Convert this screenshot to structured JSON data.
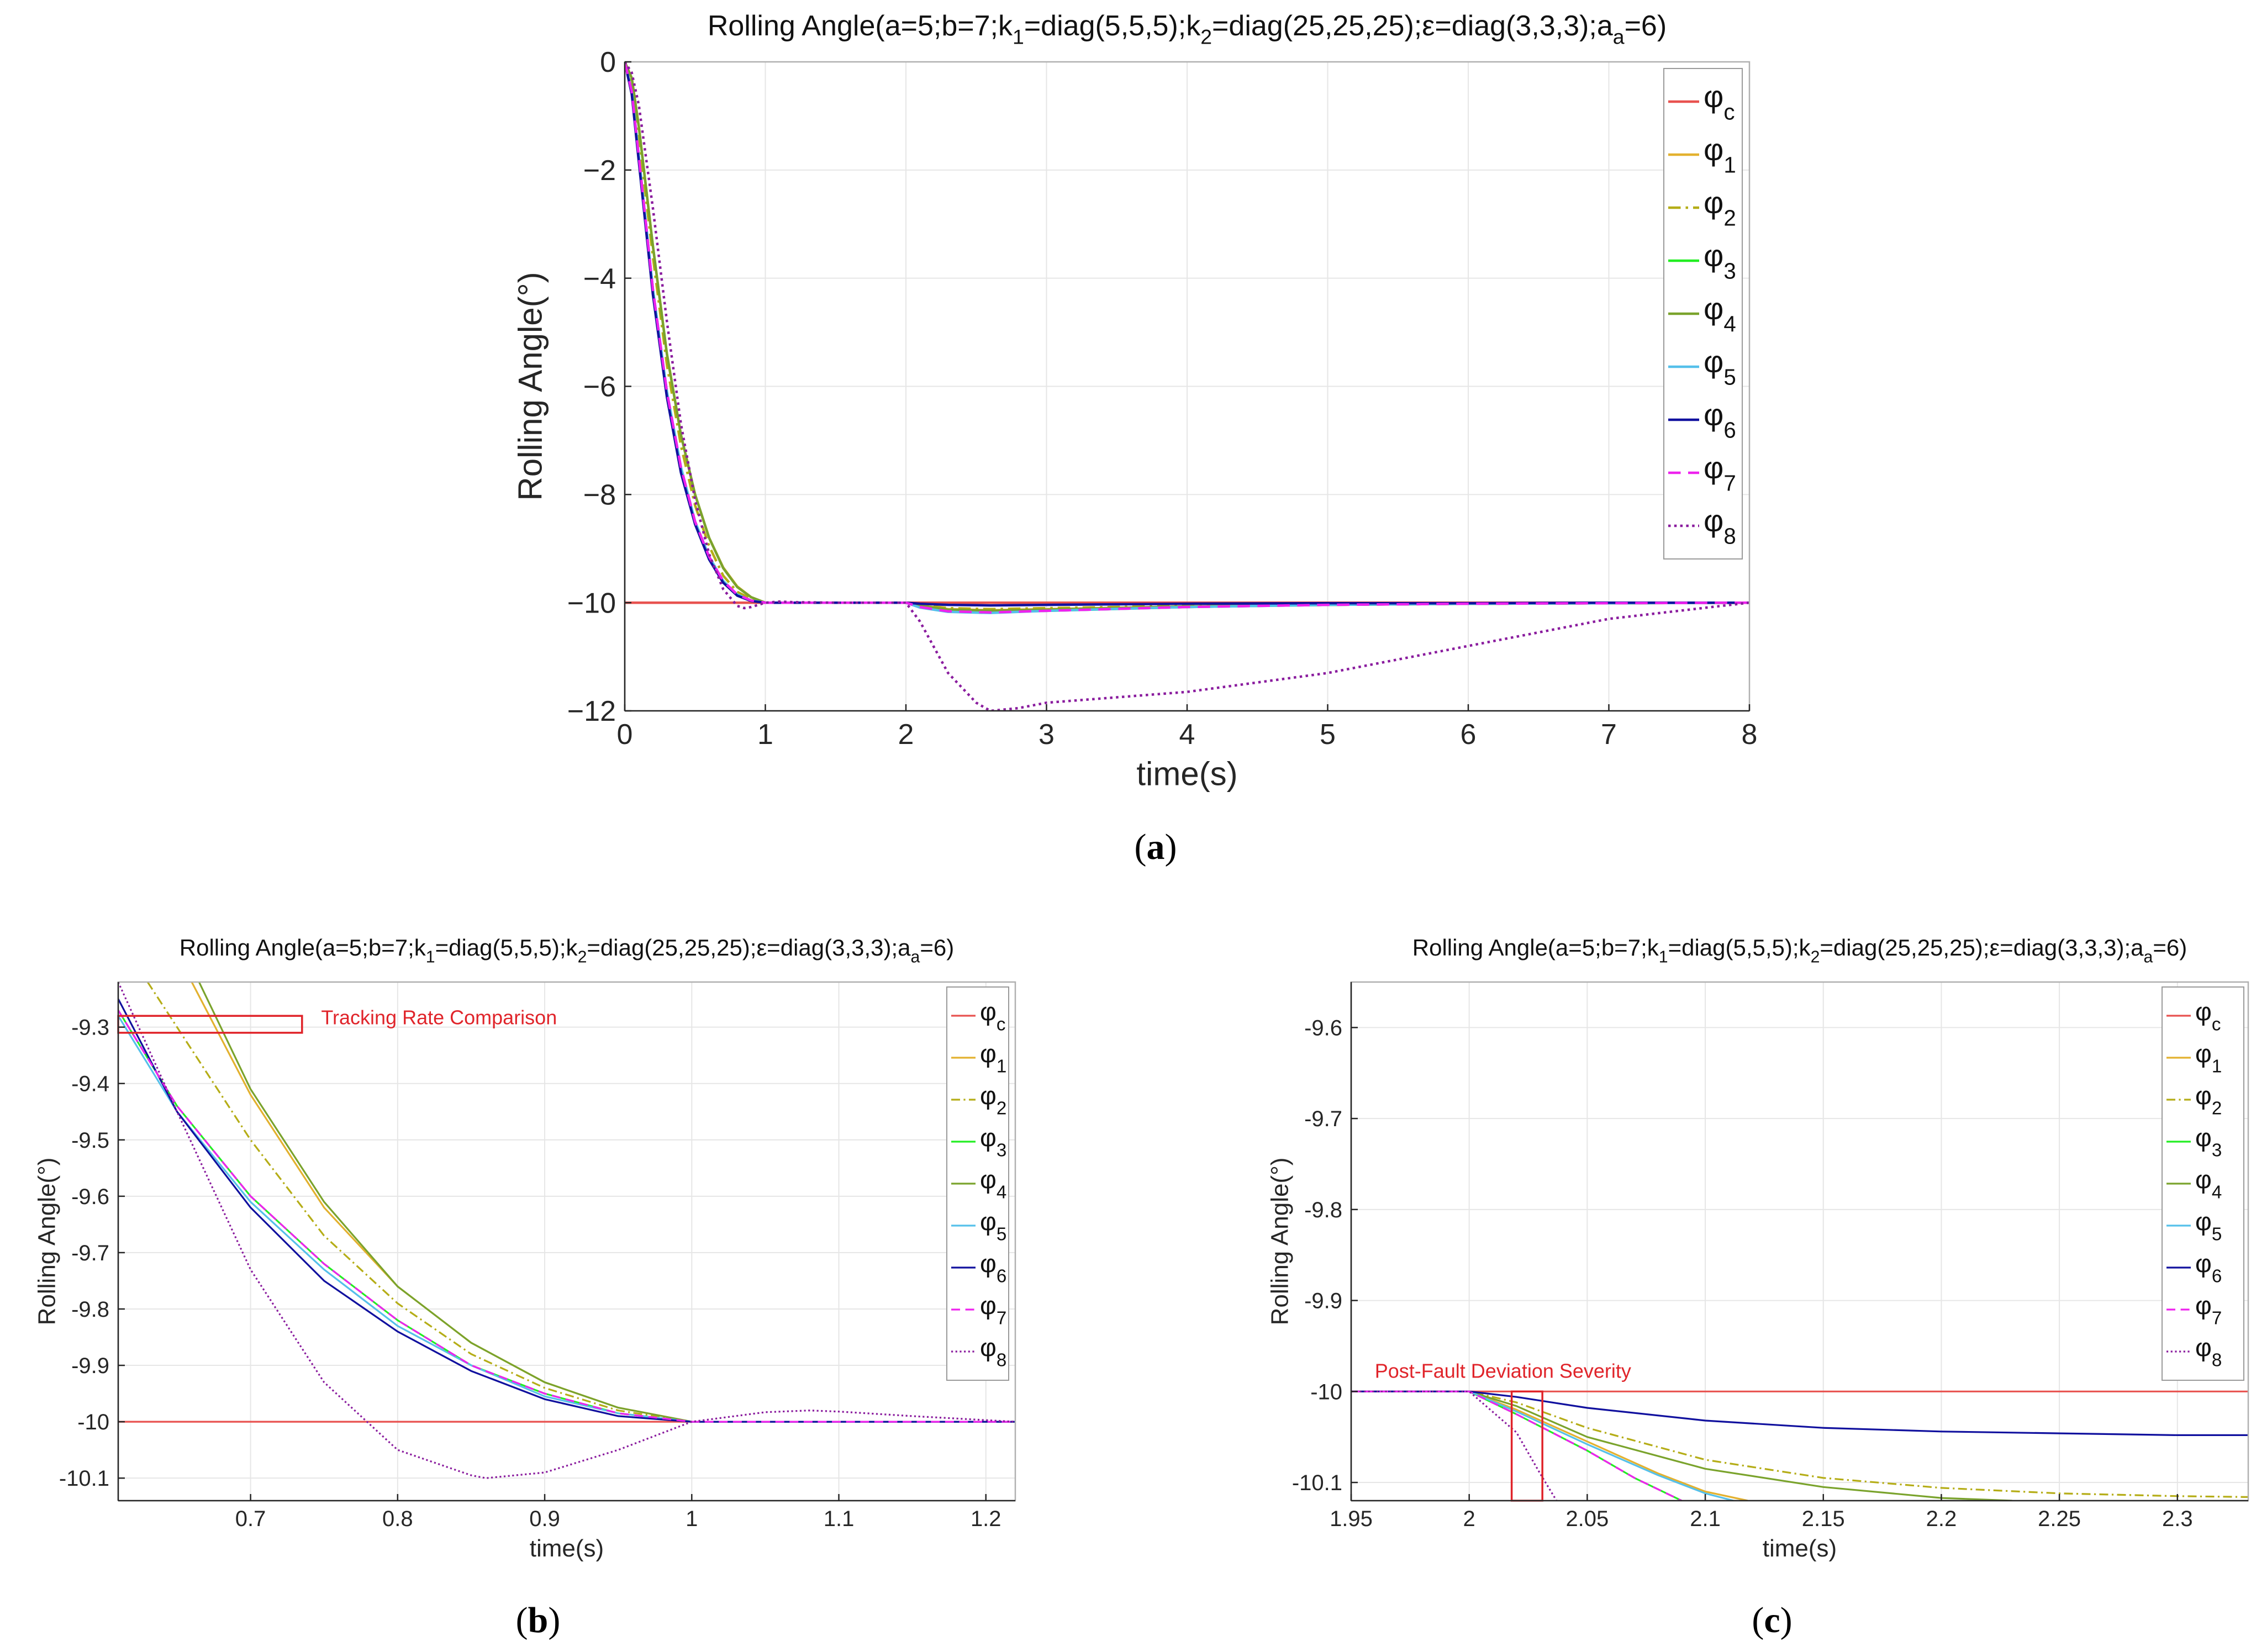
{
  "figure": {
    "captions": [
      "(a)",
      "(b)",
      "(c)"
    ],
    "caption_letters": [
      "a",
      "b",
      "c"
    ]
  },
  "colors": {
    "phi_c": "#e8524f",
    "phi_1": "#e3b12f",
    "phi_2": "#b5ad17",
    "phi_3": "#22ee22",
    "phi_4": "#7aa32c",
    "phi_5": "#55c0ea",
    "phi_6": "#10109e",
    "phi_7": "#ee22ee",
    "phi_8": "#8a1c9e",
    "annotation": "#e0242a",
    "grid": "#e6e6e6",
    "axis": "#262626"
  },
  "chart_data": [
    {
      "id": "a",
      "type": "line",
      "title": "Rolling Angle(a=5;b=7;k1=diag(5,5,5);k2=diag(25,25,25);ε=diag(3,3,3);aa=6)",
      "xlabel": "time(s)",
      "ylabel": "Rolling Angle(°)",
      "xlim": [
        0,
        8
      ],
      "ylim": [
        -12,
        0
      ],
      "xticks": [
        0,
        1,
        2,
        3,
        4,
        5,
        6,
        7,
        8
      ],
      "xtick_labels": [
        "0",
        "1",
        "2",
        "3",
        "4",
        "5",
        "6",
        "7",
        "8"
      ],
      "yticks": [
        0,
        -2,
        -4,
        -6,
        -8,
        -10,
        -12
      ],
      "ytick_labels": [
        "0",
        "−2",
        "−4",
        "−6",
        "−8",
        "−10",
        "−12"
      ],
      "grid": true,
      "legend_position": "top-right",
      "legend": [
        "φc",
        "φ1",
        "φ2",
        "φ3",
        "φ4",
        "φ5",
        "φ6",
        "φ7",
        "φ8"
      ],
      "series": [
        {
          "name": "φc",
          "style": "solid",
          "x": [
            0,
            8
          ],
          "y": [
            -10,
            -10
          ]
        },
        {
          "name": "φ1",
          "style": "solid",
          "x": [
            0,
            0.05,
            0.1,
            0.2,
            0.3,
            0.4,
            0.5,
            0.6,
            0.7,
            0.8,
            0.9,
            1.0,
            1.2,
            2.0,
            2.1,
            2.3,
            2.6,
            3,
            4,
            5,
            6,
            7,
            8
          ],
          "y": [
            0,
            -0.3,
            -1.2,
            -3.4,
            -5.4,
            -6.9,
            -8.0,
            -8.8,
            -9.35,
            -9.7,
            -9.9,
            -10,
            -10,
            -10,
            -10.05,
            -10.12,
            -10.14,
            -10.12,
            -10.07,
            -10.04,
            -10.02,
            -10.01,
            -10
          ]
        },
        {
          "name": "φ2",
          "style": "dashdot",
          "x": [
            0,
            0.05,
            0.1,
            0.2,
            0.3,
            0.4,
            0.5,
            0.6,
            0.7,
            0.8,
            0.9,
            1.0,
            1.2,
            2.0,
            2.1,
            2.3,
            2.6,
            3,
            4,
            5,
            6,
            7,
            8
          ],
          "y": [
            0,
            -0.4,
            -1.4,
            -3.6,
            -5.6,
            -7.1,
            -8.2,
            -8.95,
            -9.5,
            -9.8,
            -9.93,
            -10,
            -10,
            -10,
            -10.04,
            -10.1,
            -10.12,
            -10.1,
            -10.06,
            -10.03,
            -10.02,
            -10.01,
            -10
          ]
        },
        {
          "name": "φ3",
          "style": "solid",
          "x": [
            0,
            0.05,
            0.1,
            0.2,
            0.3,
            0.4,
            0.5,
            0.6,
            0.7,
            0.8,
            0.9,
            1.0,
            1.2,
            2.0,
            2.1,
            2.3,
            2.6,
            3,
            4,
            5,
            6,
            7,
            8
          ],
          "y": [
            0,
            -0.55,
            -1.75,
            -4.2,
            -6.1,
            -7.5,
            -8.5,
            -9.15,
            -9.6,
            -9.85,
            -9.96,
            -10,
            -10,
            -10,
            -10.08,
            -10.16,
            -10.18,
            -10.15,
            -10.08,
            -10.04,
            -10.02,
            -10.01,
            -10
          ]
        },
        {
          "name": "φ4",
          "style": "solid",
          "x": [
            0,
            0.05,
            0.1,
            0.2,
            0.3,
            0.4,
            0.5,
            0.6,
            0.7,
            0.8,
            0.9,
            1.0,
            1.2,
            2.0,
            2.1,
            2.3,
            2.6,
            3,
            4,
            5,
            6,
            7,
            8
          ],
          "y": [
            0,
            -0.3,
            -1.2,
            -3.4,
            -5.4,
            -6.9,
            -8.0,
            -8.8,
            -9.36,
            -9.71,
            -9.9,
            -10,
            -10,
            -10,
            -10.06,
            -10.13,
            -10.15,
            -10.13,
            -10.07,
            -10.04,
            -10.02,
            -10.01,
            -10
          ]
        },
        {
          "name": "φ5",
          "style": "solid",
          "x": [
            0,
            0.05,
            0.1,
            0.2,
            0.3,
            0.4,
            0.5,
            0.6,
            0.7,
            0.8,
            0.9,
            1.0,
            1.2,
            2.0,
            2.1,
            2.3,
            2.6,
            3,
            4,
            5,
            6,
            7,
            8
          ],
          "y": [
            0,
            -0.55,
            -1.75,
            -4.2,
            -6.1,
            -7.5,
            -8.5,
            -9.15,
            -9.6,
            -9.85,
            -9.96,
            -10,
            -10,
            -10,
            -10.09,
            -10.17,
            -10.19,
            -10.15,
            -10.08,
            -10.04,
            -10.02,
            -10.01,
            -10
          ]
        },
        {
          "name": "φ6",
          "style": "solid",
          "x": [
            0,
            0.05,
            0.1,
            0.2,
            0.3,
            0.4,
            0.5,
            0.6,
            0.7,
            0.8,
            0.9,
            1.0,
            1.2,
            2.0,
            2.1,
            2.3,
            2.6,
            3,
            4,
            5,
            6,
            7,
            8
          ],
          "y": [
            0,
            -0.6,
            -1.85,
            -4.3,
            -6.2,
            -7.6,
            -8.55,
            -9.2,
            -9.63,
            -9.87,
            -9.97,
            -10,
            -10,
            -10,
            -10.02,
            -10.04,
            -10.05,
            -10.04,
            -10.02,
            -10.01,
            -10.01,
            -10,
            -10
          ]
        },
        {
          "name": "φ7",
          "style": "dashed",
          "x": [
            0,
            0.05,
            0.1,
            0.2,
            0.3,
            0.4,
            0.5,
            0.6,
            0.7,
            0.8,
            0.9,
            1.0,
            1.2,
            2.0,
            2.1,
            2.3,
            2.6,
            3,
            4,
            5,
            6,
            7,
            8
          ],
          "y": [
            0,
            -0.55,
            -1.75,
            -4.2,
            -6.1,
            -7.5,
            -8.5,
            -9.15,
            -9.6,
            -9.85,
            -9.96,
            -10,
            -10,
            -10,
            -10.08,
            -10.16,
            -10.18,
            -10.15,
            -10.08,
            -10.04,
            -10.02,
            -10.01,
            -10
          ]
        },
        {
          "name": "φ8",
          "style": "dotted",
          "x": [
            0,
            0.05,
            0.1,
            0.2,
            0.3,
            0.4,
            0.5,
            0.6,
            0.7,
            0.8,
            0.85,
            0.9,
            1.0,
            1.1,
            1.2,
            1.5,
            2.0,
            2.1,
            2.3,
            2.5,
            2.6,
            2.8,
            3,
            4,
            5,
            6,
            7,
            8
          ],
          "y": [
            0,
            -0.2,
            -0.8,
            -2.7,
            -4.8,
            -6.7,
            -8.1,
            -9.1,
            -9.75,
            -10.06,
            -10.1,
            -10.08,
            -10,
            -9.98,
            -9.99,
            -10,
            -10,
            -10.35,
            -11.3,
            -11.85,
            -12,
            -11.95,
            -11.85,
            -11.65,
            -11.3,
            -10.8,
            -10.3,
            -10
          ]
        }
      ]
    },
    {
      "id": "b",
      "type": "line",
      "title": "Rolling Angle(a=5;b=7;k1=diag(5,5,5);k2=diag(25,25,25);ε=diag(3,3,3);aa=6)",
      "xlabel": "time(s)",
      "ylabel": "Rolling Angle(°)",
      "xlim": [
        0.61,
        1.22
      ],
      "ylim": [
        -10.14,
        -9.22
      ],
      "xticks": [
        0.7,
        0.8,
        0.9,
        1,
        1.1,
        1.2
      ],
      "xtick_labels": [
        "0.7",
        "0.8",
        "0.9",
        "1",
        "1.1",
        "1.2"
      ],
      "yticks": [
        -9.3,
        -9.4,
        -9.5,
        -9.6,
        -9.7,
        -9.8,
        -9.9,
        -10,
        -10.1
      ],
      "ytick_labels": [
        "-9.3",
        "-9.4",
        "-9.5",
        "-9.6",
        "-9.7",
        "-9.8",
        "-9.9",
        "-10",
        "-10.1"
      ],
      "grid": true,
      "legend_position": "top-right",
      "legend": [
        "φc",
        "φ1",
        "φ2",
        "φ3",
        "φ4",
        "φ5",
        "φ6",
        "φ7",
        "φ8"
      ],
      "annotation": {
        "text": "Tracking Rate Comparison",
        "box_x": [
          0.61,
          0.735
        ],
        "box_y": [
          -9.31,
          -9.28
        ]
      },
      "series": [
        {
          "name": "φc",
          "style": "solid",
          "x": [
            0.61,
            1.22
          ],
          "y": [
            -10,
            -10
          ]
        },
        {
          "name": "φ1",
          "style": "solid",
          "x": [
            0.66,
            0.7,
            0.75,
            0.8,
            0.85,
            0.9,
            0.95,
            1.0,
            1.05,
            1.22
          ],
          "y": [
            -9.22,
            -9.42,
            -9.62,
            -9.76,
            -9.86,
            -9.93,
            -9.975,
            -10,
            -10,
            -10
          ]
        },
        {
          "name": "φ2",
          "style": "dashdot",
          "x": [
            0.63,
            0.7,
            0.75,
            0.8,
            0.85,
            0.9,
            0.95,
            1.0,
            1.05,
            1.22
          ],
          "y": [
            -9.22,
            -9.5,
            -9.67,
            -9.79,
            -9.88,
            -9.94,
            -9.98,
            -10,
            -10,
            -10
          ]
        },
        {
          "name": "φ3",
          "style": "solid",
          "x": [
            0.61,
            0.65,
            0.7,
            0.75,
            0.8,
            0.85,
            0.9,
            0.95,
            1.0,
            1.05,
            1.22
          ],
          "y": [
            -9.27,
            -9.44,
            -9.6,
            -9.72,
            -9.82,
            -9.9,
            -9.95,
            -9.985,
            -10,
            -10,
            -10
          ]
        },
        {
          "name": "φ4",
          "style": "solid",
          "x": [
            0.665,
            0.7,
            0.75,
            0.8,
            0.85,
            0.9,
            0.95,
            1.0,
            1.05,
            1.22
          ],
          "y": [
            -9.22,
            -9.41,
            -9.61,
            -9.76,
            -9.86,
            -9.93,
            -9.975,
            -10,
            -10,
            -10
          ]
        },
        {
          "name": "φ5",
          "style": "solid",
          "x": [
            0.61,
            0.65,
            0.7,
            0.75,
            0.8,
            0.85,
            0.9,
            0.95,
            1.0,
            1.05,
            1.22
          ],
          "y": [
            -9.28,
            -9.45,
            -9.61,
            -9.73,
            -9.83,
            -9.9,
            -9.955,
            -9.985,
            -10,
            -10,
            -10
          ]
        },
        {
          "name": "φ6",
          "style": "solid",
          "x": [
            0.61,
            0.65,
            0.7,
            0.75,
            0.8,
            0.85,
            0.9,
            0.95,
            1.0,
            1.05,
            1.22
          ],
          "y": [
            -9.25,
            -9.45,
            -9.62,
            -9.75,
            -9.84,
            -9.91,
            -9.96,
            -9.99,
            -10,
            -10,
            -10
          ]
        },
        {
          "name": "φ7",
          "style": "dashed",
          "x": [
            0.61,
            0.65,
            0.7,
            0.75,
            0.8,
            0.85,
            0.9,
            0.95,
            1.0,
            1.05,
            1.22
          ],
          "y": [
            -9.27,
            -9.44,
            -9.6,
            -9.72,
            -9.82,
            -9.9,
            -9.95,
            -9.985,
            -10,
            -10,
            -10
          ]
        },
        {
          "name": "φ8",
          "style": "dotted",
          "x": [
            0.61,
            0.65,
            0.7,
            0.75,
            0.8,
            0.85,
            0.86,
            0.9,
            0.95,
            1.0,
            1.05,
            1.08,
            1.1,
            1.15,
            1.22
          ],
          "y": [
            -9.22,
            -9.45,
            -9.73,
            -9.93,
            -10.05,
            -10.095,
            -10.1,
            -10.09,
            -10.05,
            -10,
            -9.983,
            -9.98,
            -9.982,
            -9.99,
            -10
          ]
        }
      ]
    },
    {
      "id": "c",
      "type": "line",
      "title": "Rolling Angle(a=5;b=7;k1=diag(5,5,5);k2=diag(25,25,25);ε=diag(3,3,3);aa=6)",
      "xlabel": "time(s)",
      "ylabel": "Rolling Angle(°)",
      "xlim": [
        1.95,
        2.33
      ],
      "ylim": [
        -10.12,
        -9.55
      ],
      "xticks": [
        1.95,
        2,
        2.05,
        2.1,
        2.15,
        2.2,
        2.25,
        2.3
      ],
      "xtick_labels": [
        "1.95",
        "2",
        "2.05",
        "2.1",
        "2.15",
        "2.2",
        "2.25",
        "2.3"
      ],
      "yticks": [
        -9.6,
        -9.7,
        -9.8,
        -9.9,
        -10,
        -10.1
      ],
      "ytick_labels": [
        "-9.6",
        "-9.7",
        "-9.8",
        "-9.9",
        "-10",
        "-10.1"
      ],
      "grid": true,
      "legend_position": "top-right",
      "legend": [
        "φc",
        "φ1",
        "φ2",
        "φ3",
        "φ4",
        "φ5",
        "φ6",
        "φ7",
        "φ8"
      ],
      "annotation": {
        "text": "Post-Fault Deviation Severity",
        "box_x": [
          2.018,
          2.031
        ],
        "box_y": [
          -10.12,
          -10
        ]
      },
      "series": [
        {
          "name": "φc",
          "style": "solid",
          "x": [
            1.95,
            2.33
          ],
          "y": [
            -10,
            -10
          ]
        },
        {
          "name": "φ1",
          "style": "solid",
          "x": [
            1.95,
            2.0,
            2.02,
            2.05,
            2.08,
            2.1,
            2.118
          ],
          "y": [
            -10,
            -10,
            -10.02,
            -10.055,
            -10.09,
            -10.11,
            -10.12
          ]
        },
        {
          "name": "φ2",
          "style": "dashdot",
          "x": [
            1.95,
            2.0,
            2.02,
            2.05,
            2.1,
            2.15,
            2.2,
            2.25,
            2.3,
            2.33
          ],
          "y": [
            -10,
            -10,
            -10.012,
            -10.04,
            -10.075,
            -10.095,
            -10.106,
            -10.112,
            -10.115,
            -10.116
          ]
        },
        {
          "name": "φ3",
          "style": "solid",
          "x": [
            1.95,
            2.0,
            2.02,
            2.05,
            2.07,
            2.09
          ],
          "y": [
            -10,
            -10,
            -10.025,
            -10.065,
            -10.095,
            -10.12
          ]
        },
        {
          "name": "φ4",
          "style": "solid",
          "x": [
            1.95,
            2.0,
            2.02,
            2.05,
            2.1,
            2.15,
            2.2,
            2.23
          ],
          "y": [
            -10,
            -10,
            -10.016,
            -10.05,
            -10.085,
            -10.105,
            -10.117,
            -10.12
          ]
        },
        {
          "name": "φ5",
          "style": "solid",
          "x": [
            1.95,
            2.0,
            2.02,
            2.05,
            2.08,
            2.1,
            2.112
          ],
          "y": [
            -10,
            -10,
            -10.022,
            -10.058,
            -10.092,
            -10.112,
            -10.12
          ]
        },
        {
          "name": "φ6",
          "style": "solid",
          "x": [
            1.95,
            2.0,
            2.02,
            2.05,
            2.1,
            2.15,
            2.2,
            2.25,
            2.3,
            2.33
          ],
          "y": [
            -10,
            -10,
            -10.006,
            -10.018,
            -10.032,
            -10.04,
            -10.044,
            -10.046,
            -10.048,
            -10.048
          ]
        },
        {
          "name": "φ7",
          "style": "dashed",
          "x": [
            1.95,
            2.0,
            2.02,
            2.05,
            2.07,
            2.09
          ],
          "y": [
            -10,
            -10,
            -10.025,
            -10.065,
            -10.095,
            -10.12
          ]
        },
        {
          "name": "φ8",
          "style": "dotted",
          "x": [
            1.95,
            2.0,
            2.02,
            2.03,
            2.037
          ],
          "y": [
            -10,
            -10,
            -10.045,
            -10.09,
            -10.12
          ]
        }
      ]
    }
  ]
}
